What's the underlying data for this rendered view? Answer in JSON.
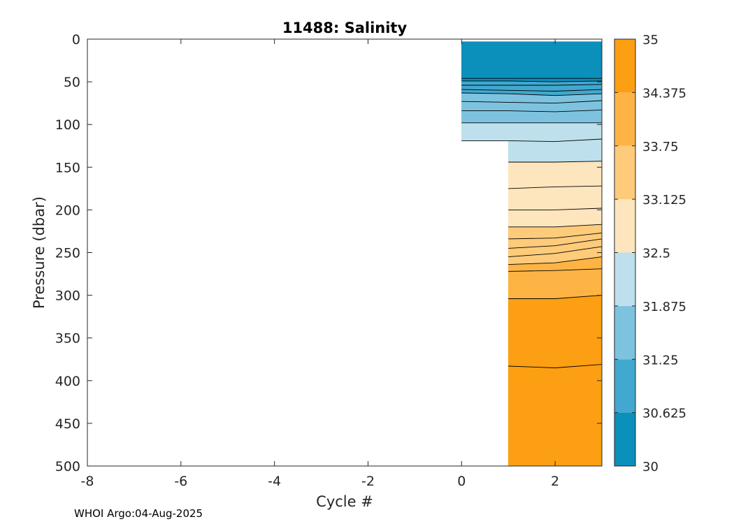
{
  "chart_data": {
    "type": "contourf",
    "title": "11488:  Salinity",
    "xlabel": "Cycle #",
    "ylabel": "Pressure (dbar)",
    "xlim": [
      -8,
      3
    ],
    "ylim": [
      500,
      0
    ],
    "y_reversed": true,
    "xticks": [
      -8,
      -6,
      -4,
      -2,
      0,
      2
    ],
    "yticks": [
      0,
      50,
      100,
      150,
      200,
      250,
      300,
      350,
      400,
      450,
      500
    ],
    "colorbar": {
      "range": [
        30,
        35
      ],
      "tick_labels": [
        "30",
        "30.625",
        "31.25",
        "31.875",
        "32.5",
        "33.125",
        "33.75",
        "34.375",
        "35"
      ],
      "levels": [
        30,
        30.625,
        31.25,
        31.875,
        32.5,
        33.125,
        33.75,
        34.375,
        35
      ],
      "colors": [
        "#0b8fbb",
        "#41a8cf",
        "#7dc3df",
        "#bee0ec",
        "#fde5bd",
        "#fdcb7a",
        "#fdb445",
        "#fd9f12"
      ]
    },
    "profiles": [
      {
        "cycle": 0,
        "max_pressure": 133
      },
      {
        "cycle": 1,
        "max_pressure": 500
      },
      {
        "cycle": 2,
        "max_pressure": 500
      },
      {
        "cycle": 3,
        "max_pressure": 500
      }
    ],
    "contour_pressure_levels": [
      {
        "value": 30.625,
        "color_index": 0,
        "pressures": [
          46,
          46,
          46,
          46
        ]
      },
      {
        "value": 30.7,
        "color_index": 1,
        "pressures": [
          49,
          49,
          50,
          49
        ]
      },
      {
        "value": 30.8,
        "color_index": 1,
        "pressures": [
          54,
          54,
          54,
          53
        ]
      },
      {
        "value": 31.0,
        "color_index": 1,
        "pressures": [
          59,
          60,
          61,
          59
        ]
      },
      {
        "value": 31.25,
        "color_index": 2,
        "pressures": [
          63,
          64,
          66,
          64
        ]
      },
      {
        "value": 31.4,
        "color_index": 2,
        "pressures": [
          73,
          74,
          75,
          72
        ]
      },
      {
        "value": 31.6,
        "color_index": 2,
        "pressures": [
          84,
          84,
          85,
          83
        ]
      },
      {
        "value": 31.875,
        "color_index": 3,
        "pressures": [
          98,
          98,
          98,
          98
        ]
      },
      {
        "value": 32.2,
        "color_index": 3,
        "pressures": [
          119,
          119,
          120,
          117
        ]
      },
      {
        "value": 32.5,
        "color_index": 4,
        "pressures": [
          null,
          144,
          144,
          143
        ]
      },
      {
        "value": 32.8,
        "color_index": 4,
        "pressures": [
          null,
          175,
          173,
          172
        ]
      },
      {
        "value": 33.0,
        "color_index": 4,
        "pressures": [
          null,
          200,
          200,
          198
        ]
      },
      {
        "value": 33.125,
        "color_index": 5,
        "pressures": [
          null,
          220,
          220,
          217
        ]
      },
      {
        "value": 33.3,
        "color_index": 5,
        "pressures": [
          null,
          234,
          233,
          227
        ]
      },
      {
        "value": 33.5,
        "color_index": 5,
        "pressures": [
          null,
          245,
          242,
          234
        ]
      },
      {
        "value": 33.6,
        "color_index": 5,
        "pressures": [
          null,
          255,
          251,
          243
        ]
      },
      {
        "value": 33.75,
        "color_index": 6,
        "pressures": [
          null,
          264,
          262,
          255
        ]
      },
      {
        "value": 34.0,
        "color_index": 6,
        "pressures": [
          null,
          272,
          271,
          269
        ]
      },
      {
        "value": 34.375,
        "color_index": 7,
        "pressures": [
          null,
          304,
          304,
          300
        ]
      },
      {
        "value": 34.6,
        "color_index": 7,
        "pressures": [
          null,
          383,
          385,
          381
        ]
      }
    ],
    "surface_gap": {
      "cycles": [
        0,
        2
      ],
      "pressure": 3
    }
  },
  "footer": {
    "text": "WHOI Argo:04-Aug-2025"
  }
}
